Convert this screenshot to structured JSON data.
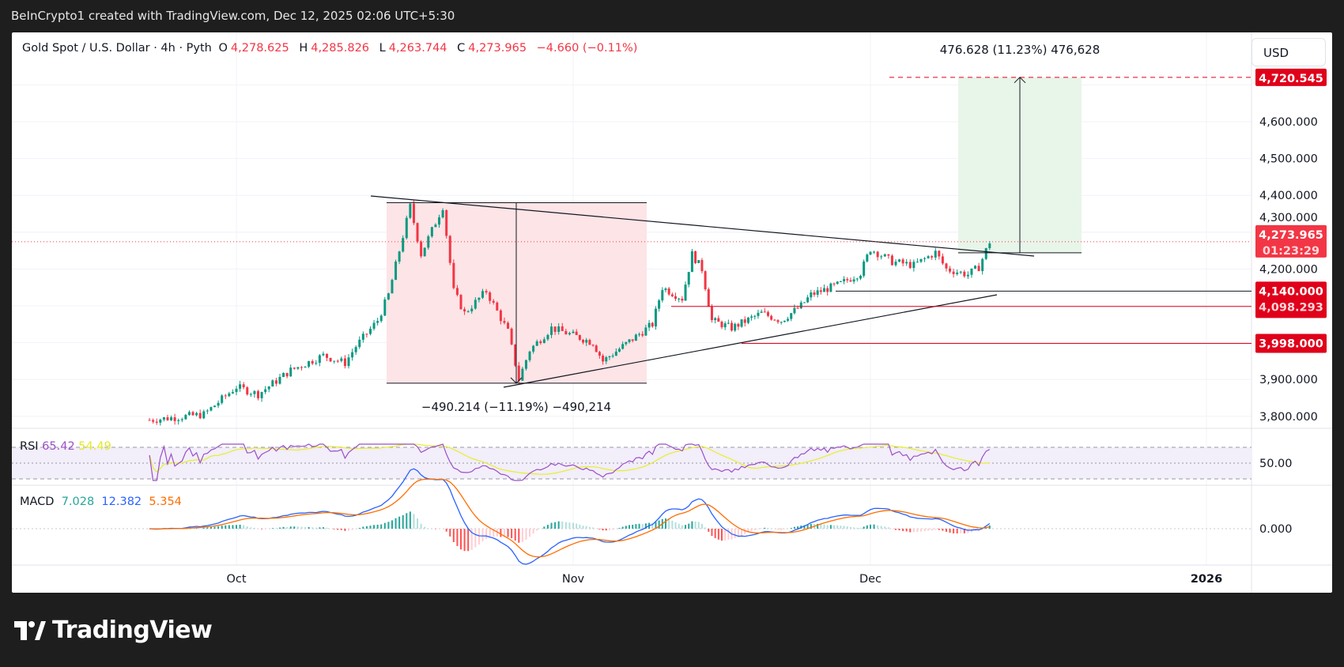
{
  "header": {
    "caption": "BeInCrypto1 created with TradingView.com, Dec 12, 2025 02:06 UTC+5:30"
  },
  "legend": {
    "symbol": "Gold Spot / U.S. Dollar · 4h · Pyth",
    "o_label": "O",
    "o": "4,278.625",
    "h_label": "H",
    "h": "4,285.826",
    "l_label": "L",
    "l": "4,263.744",
    "c_label": "C",
    "c": "4,273.965",
    "change": "−4.660 (−0.11%)"
  },
  "currency_button": "USD",
  "rsi": {
    "label": "RSI",
    "value": "65.42",
    "ma": "54.49",
    "axis": "50.00"
  },
  "macd": {
    "label": "MACD",
    "hist": "7.028",
    "macd": "12.382",
    "signal": "5.354",
    "axis": "0.000"
  },
  "footer": {
    "logo_text": "TradingView"
  },
  "colors": {
    "up": "#089981",
    "down": "#f23645",
    "level": "#e0001a",
    "rsi": "#9c4fc7",
    "rsi_ma": "#e6ef2b",
    "macd": "#2962ff",
    "signal": "#ff6d00",
    "target_zone": "#e8f5e9",
    "drop_zone": "#fde4e6"
  },
  "chart_data": {
    "type": "candlestick",
    "symbol": "Gold Spot / U.S. Dollar",
    "interval": "4h",
    "ylim": [
      3780,
      4760
    ],
    "y_ticks": [
      "4,600.000",
      "4,500.000",
      "4,400.000",
      "4,300.000",
      "4,200.000",
      "3,900.000",
      "3,800.000"
    ],
    "y_tick_values": [
      4600,
      4500,
      4400,
      4300,
      4200,
      3900,
      3800
    ],
    "x_ticks": [
      "Oct",
      "Nov",
      "Dec",
      "2026"
    ],
    "grid": true,
    "price_path": [
      [
        "2025-09-23",
        3790
      ],
      [
        "2025-09-28",
        3805
      ],
      [
        "2025-10-01",
        3880
      ],
      [
        "2025-10-03",
        3860
      ],
      [
        "2025-10-06",
        3925
      ],
      [
        "2025-10-09",
        3965
      ],
      [
        "2025-10-11",
        3945
      ],
      [
        "2025-10-12",
        3990
      ],
      [
        "2025-10-14",
        4060
      ],
      [
        "2025-10-15",
        4130
      ],
      [
        "2025-10-17",
        4370
      ],
      [
        "2025-10-18",
        4240
      ],
      [
        "2025-10-20",
        4370
      ],
      [
        "2025-10-21",
        4140
      ],
      [
        "2025-10-22",
        4080
      ],
      [
        "2025-10-24",
        4140
      ],
      [
        "2025-10-26",
        4030
      ],
      [
        "2025-10-27",
        3900
      ],
      [
        "2025-10-28",
        3980
      ],
      [
        "2025-10-30",
        4040
      ],
      [
        "2025-11-03",
        4000
      ],
      [
        "2025-11-04",
        3950
      ],
      [
        "2025-11-07",
        4010
      ],
      [
        "2025-11-09",
        4050
      ],
      [
        "2025-11-10",
        4150
      ],
      [
        "2025-11-12",
        4120
      ],
      [
        "2025-11-13",
        4240
      ],
      [
        "2025-11-14",
        4200
      ],
      [
        "2025-11-15",
        4060
      ],
      [
        "2025-11-17",
        4040
      ],
      [
        "2025-11-20",
        4080
      ],
      [
        "2025-11-22",
        4060
      ],
      [
        "2025-11-24",
        4100
      ],
      [
        "2025-11-25",
        4130
      ],
      [
        "2025-11-28",
        4160
      ],
      [
        "2025-11-30",
        4190
      ],
      [
        "2025-12-01",
        4255
      ],
      [
        "2025-12-03",
        4220
      ],
      [
        "2025-12-05",
        4210
      ],
      [
        "2025-12-07",
        4245
      ],
      [
        "2025-12-08",
        4200
      ],
      [
        "2025-12-10",
        4185
      ],
      [
        "2025-12-11",
        4205
      ],
      [
        "2025-12-12",
        4273.965
      ]
    ],
    "last_price": {
      "value": "4,273.965",
      "countdown": "01:23:29"
    },
    "levels": [
      {
        "value": 4720.545,
        "label": "4,720.545",
        "style": "dashed"
      },
      {
        "value": 4140,
        "label": "4,140.000"
      },
      {
        "value": 4098.293,
        "label": "4,098.293"
      },
      {
        "value": 3998,
        "label": "3,998.000"
      }
    ],
    "measure_down": {
      "from": 4380,
      "to": 3890,
      "label": "−490.214 (−11.19%) −490,214"
    },
    "measure_up": {
      "from": 4244,
      "to": 4720.545,
      "label": "476.628 (11.23%) 476,628"
    }
  }
}
